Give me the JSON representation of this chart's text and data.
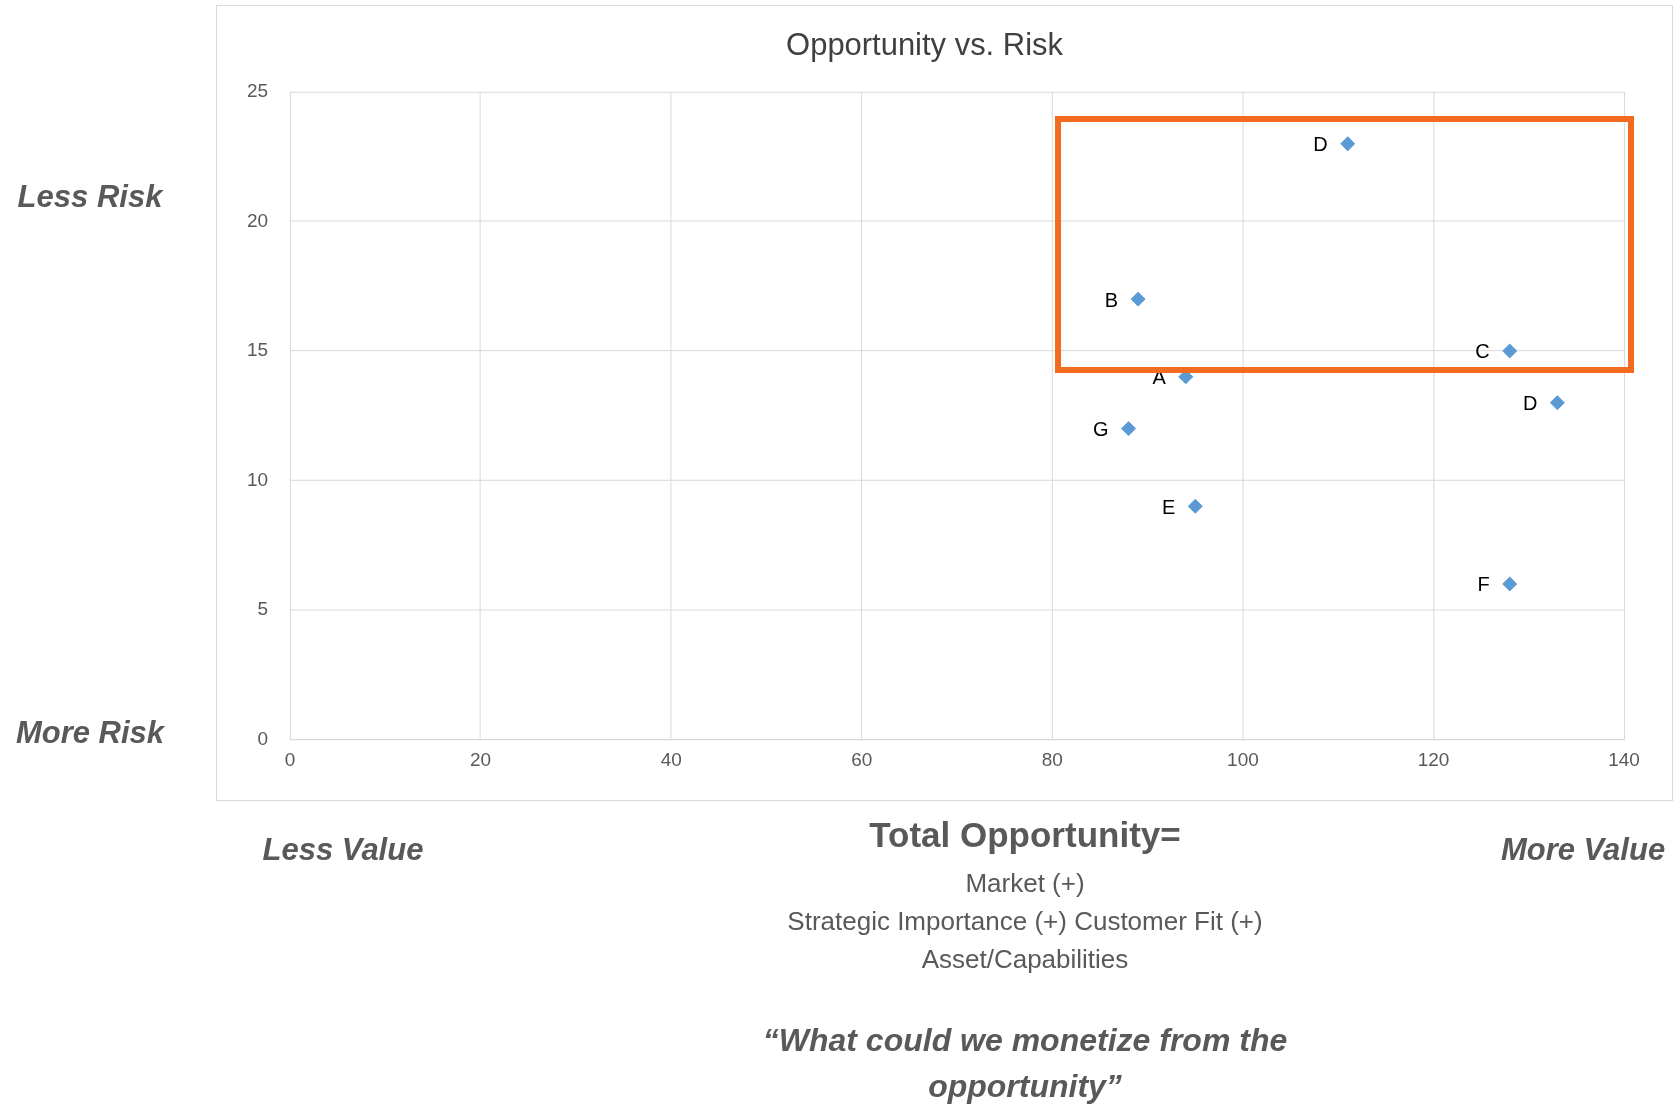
{
  "chart_data": {
    "type": "scatter",
    "title": "Opportunity vs. Risk",
    "xlabel": "Total Opportunity=",
    "x": [
      111,
      89,
      128,
      94,
      133,
      88,
      95,
      128
    ],
    "values": [
      23,
      17,
      15,
      14,
      13,
      12,
      9,
      6
    ],
    "value_labels": [
      "D",
      "B",
      "C",
      "A",
      "D",
      "G",
      "E",
      "F"
    ],
    "color": "#5b9bd5",
    "marker": "diamond",
    "xlim": [
      0,
      140
    ],
    "xticks": [
      0,
      20,
      40,
      60,
      80,
      100,
      120,
      140
    ],
    "ylim": [
      0,
      25
    ],
    "yticks": [
      0,
      5,
      10,
      15,
      20,
      25
    ],
    "grid": true,
    "legend": false,
    "annotations": [
      "Less Risk",
      "More Risk",
      "Less Value",
      "More Value",
      "Market (+)",
      "Strategic Importance (+) Customer Fit (+)",
      "Asset/Capabilities",
      "“What could we monetize from the opportunity”"
    ]
  }
}
